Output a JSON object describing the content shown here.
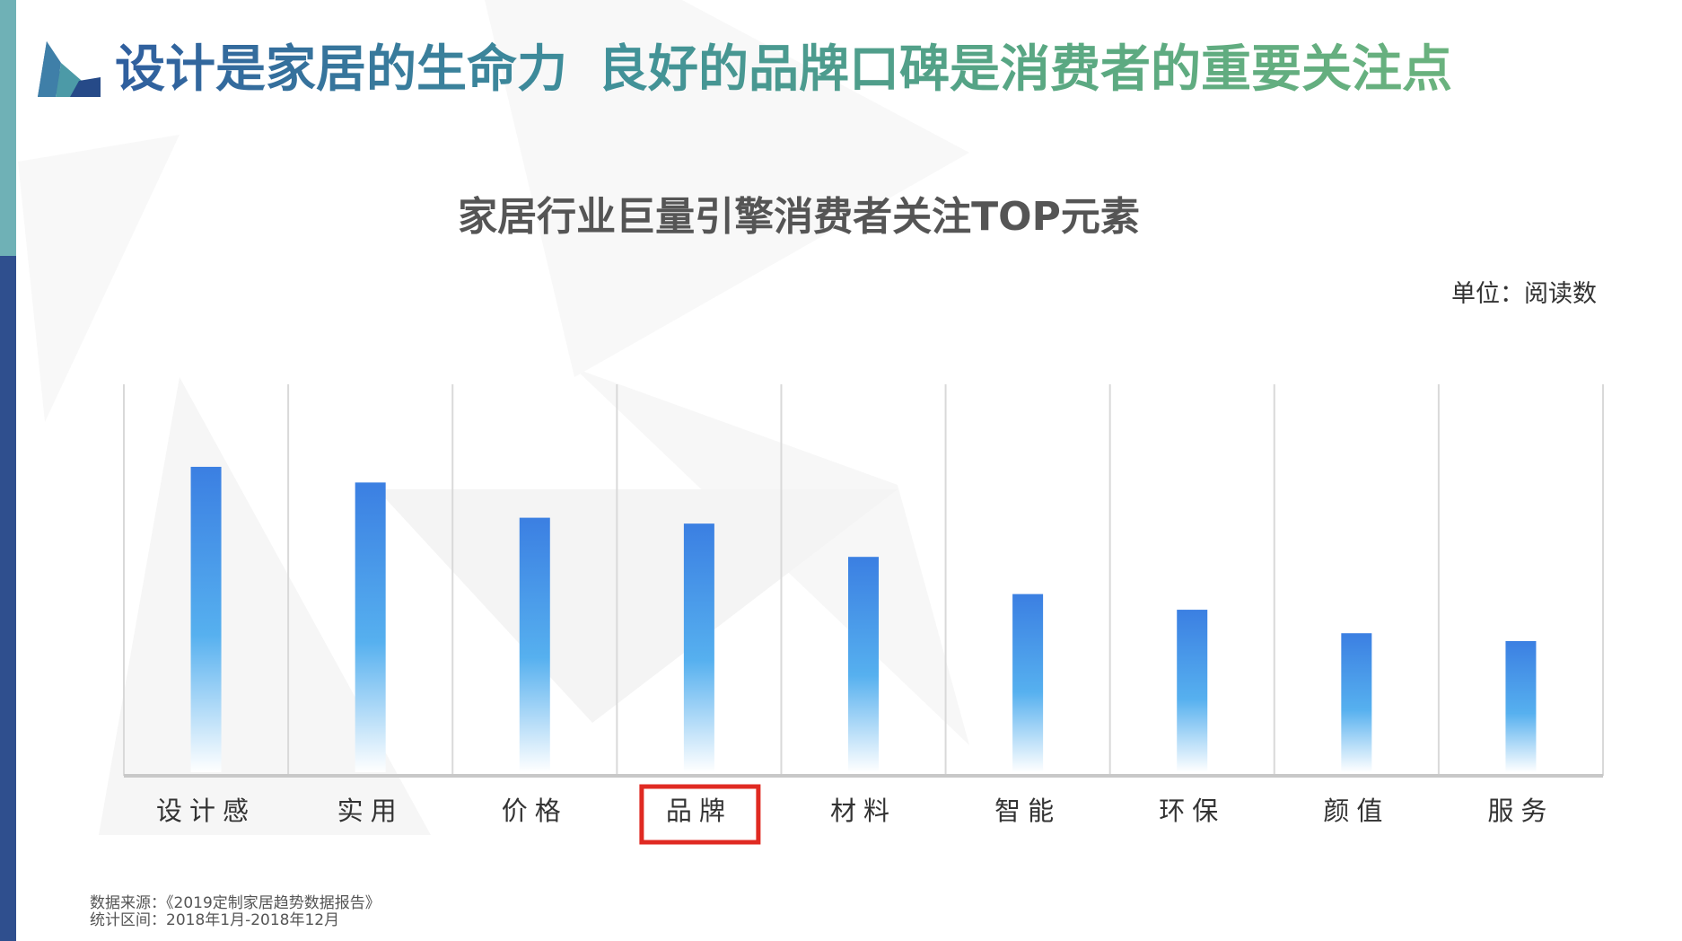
{
  "header": {
    "title_part1": "设计是家居的生命力",
    "title_part2": "良好的品牌口碑是消费者的重要关注点"
  },
  "chart_data": {
    "type": "bar",
    "title": "家居行业巨量引擎消费者关注TOP元素",
    "unit": "单位：阅读数",
    "categories": [
      "设计感",
      "实用",
      "价格",
      "品牌",
      "材料",
      "智能",
      "环保",
      "颜值",
      "服务"
    ],
    "values": [
      78,
      74,
      65,
      63.5,
      55,
      45.5,
      41.5,
      35.5,
      33.5
    ],
    "ylim": [
      0,
      100
    ],
    "highlighted_category": "品牌",
    "highlight_color": "#e02a22",
    "bar_color_top": "#3b7fe2",
    "bar_color_mid": "#56b0ef",
    "grid": true,
    "gridlines": "vertical"
  },
  "footnote": {
    "source": "数据来源：《2019定制家居趋势数据报告》",
    "period": "统计区间：2018年1月-2018年12月"
  },
  "colors": {
    "sidebar_top": "#6fb1b6",
    "sidebar_bottom": "#2f4f8e"
  }
}
